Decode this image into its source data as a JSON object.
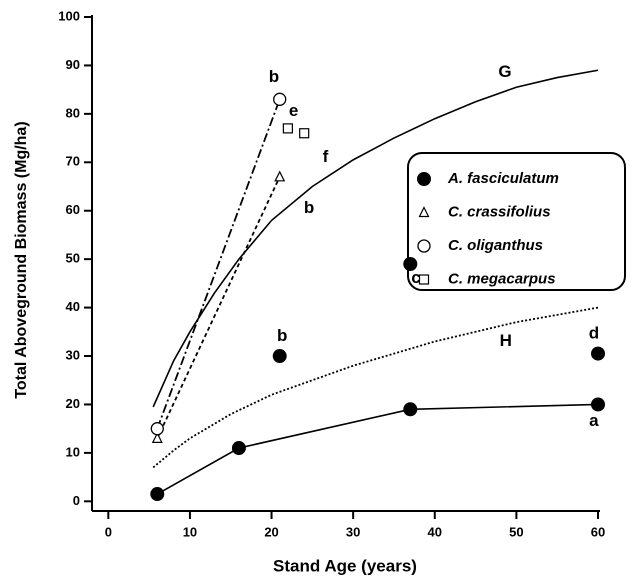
{
  "chart_data": {
    "type": "scatter",
    "xlabel": "Stand Age (years)",
    "ylabel": "Total Aboveground Biomass (Mg/ha)",
    "xlim": [
      -2,
      60
    ],
    "ylim": [
      -2,
      100
    ],
    "xticks": [
      0,
      10,
      20,
      30,
      40,
      50,
      60
    ],
    "yticks": [
      0,
      10,
      20,
      30,
      40,
      50,
      60,
      70,
      80,
      90,
      100
    ],
    "legend": "upper right",
    "series": [
      {
        "name": "A. fasciculatum",
        "marker": "filled-circle",
        "line": "solid",
        "x": [
          6,
          16,
          37,
          60
        ],
        "values": [
          1.5,
          11,
          19,
          20
        ]
      },
      {
        "marker": "filled-circle",
        "x": [
          21,
          37,
          60
        ],
        "values": [
          30,
          49,
          30.5
        ]
      },
      {
        "name": "C. crassifolius",
        "marker": "triangle",
        "line": "dashed",
        "x": [
          6,
          21
        ],
        "values": [
          13,
          67
        ]
      },
      {
        "name": "C. oliganthus",
        "marker": "open-circle",
        "line": "dashdot",
        "x": [
          6,
          21
        ],
        "values": [
          15,
          83
        ]
      },
      {
        "name": "C. megacarpus",
        "marker": "square",
        "x": [
          22,
          24
        ],
        "values": [
          77,
          76
        ]
      }
    ],
    "curves": [
      {
        "line": "solid",
        "x": [
          5.5,
          8,
          10,
          13,
          16,
          20,
          25,
          30,
          35,
          40,
          45,
          50,
          55,
          60
        ],
        "values": [
          19.5,
          29,
          35,
          43,
          50,
          58,
          65,
          70.5,
          75,
          79,
          82.5,
          85.5,
          87.5,
          89
        ]
      },
      {
        "line": "dotted",
        "x": [
          5.5,
          8,
          10,
          15,
          20,
          25,
          30,
          35,
          40,
          45,
          50,
          55,
          60
        ],
        "values": [
          7,
          10.5,
          13,
          18,
          22,
          25,
          28,
          30.5,
          33,
          35,
          37,
          38.5,
          40
        ]
      }
    ],
    "annotations": [
      {
        "text": "b",
        "x": 20.3,
        "y": 87.5
      },
      {
        "text": "e",
        "x": 22.7,
        "y": 80.5
      },
      {
        "text": "f",
        "x": 26.6,
        "y": 71
      },
      {
        "text": "b",
        "x": 24.6,
        "y": 60.5
      },
      {
        "text": "G",
        "x": 48.6,
        "y": 88.5
      },
      {
        "text": "b",
        "x": 21.3,
        "y": 34
      },
      {
        "text": "c",
        "x": 37.7,
        "y": 46
      },
      {
        "text": "H",
        "x": 48.7,
        "y": 33
      },
      {
        "text": "d",
        "x": 59.5,
        "y": 34.5
      },
      {
        "text": "a",
        "x": 59.5,
        "y": 16.5
      }
    ]
  }
}
